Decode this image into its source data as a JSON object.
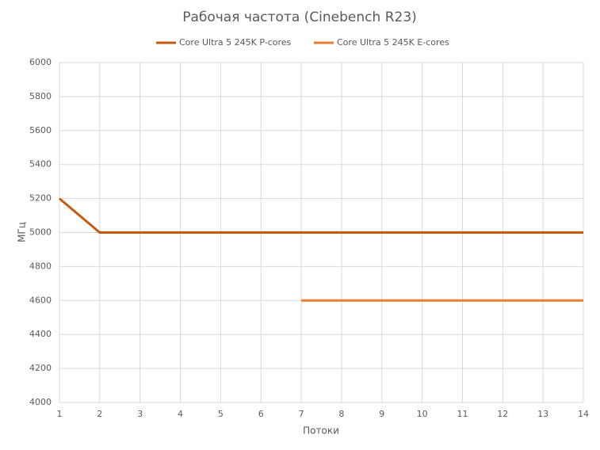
{
  "chart_data": {
    "type": "line",
    "title": "Рабочая частота (Cinebench R23)",
    "x_label": "Потоки",
    "y_label": "МГц",
    "x": [
      1,
      2,
      3,
      4,
      5,
      6,
      7,
      8,
      9,
      10,
      11,
      12,
      13,
      14
    ],
    "series": [
      {
        "name": "Core Ultra 5 245K P-cores",
        "color": "#c55a11",
        "values": [
          5200,
          5000,
          5000,
          5000,
          5000,
          5000,
          5000,
          5000,
          5000,
          5000,
          5000,
          5000,
          5000,
          5000
        ]
      },
      {
        "name": "Core Ultra 5 245K E-cores",
        "color": "#ed7d31",
        "values": [
          null,
          null,
          null,
          null,
          null,
          null,
          4600,
          4600,
          4600,
          4600,
          4600,
          4600,
          4600,
          4600
        ]
      }
    ],
    "xlim": [
      1,
      14
    ],
    "xticks": [
      1,
      2,
      3,
      4,
      5,
      6,
      7,
      8,
      9,
      10,
      11,
      12,
      13,
      14
    ],
    "ylim": [
      4000,
      6000
    ],
    "yticks": [
      4000,
      4200,
      4400,
      4600,
      4800,
      5000,
      5200,
      5400,
      5600,
      5800,
      6000
    ],
    "grid": true,
    "legend": "top"
  }
}
